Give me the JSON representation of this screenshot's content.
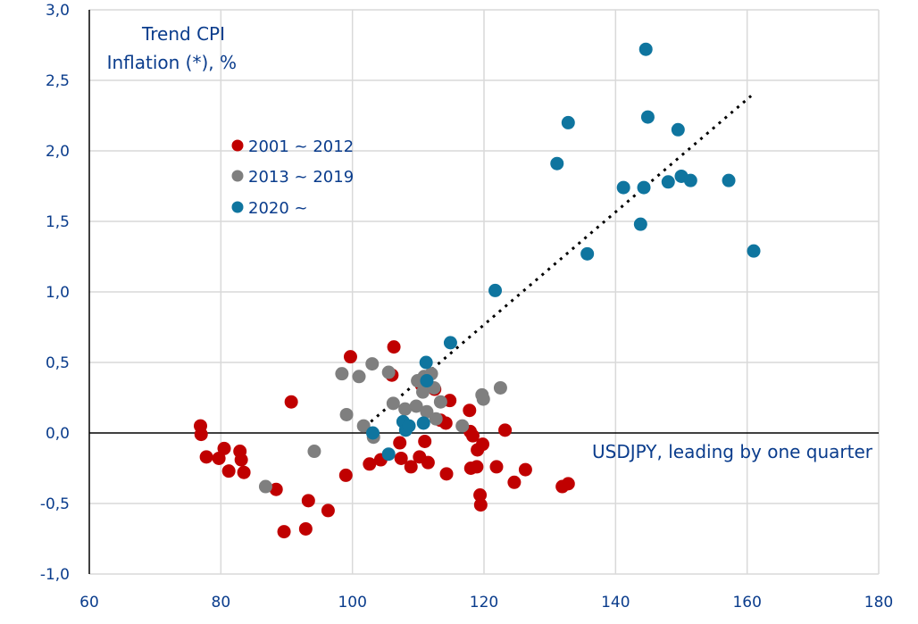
{
  "chart_data": {
    "type": "scatter",
    "title": "",
    "ylabel_lines": [
      "Trend CPI",
      "Inflation (*), %"
    ],
    "xlabel": "USDJPY, leading by one quarter",
    "xlim": [
      60,
      180
    ],
    "ylim": [
      -1.0,
      3.0
    ],
    "xticks": [
      60,
      80,
      100,
      120,
      140,
      160,
      180
    ],
    "xtick_labels": [
      "60",
      "80",
      "100",
      "120",
      "140",
      "160",
      "180"
    ],
    "yticks": [
      -1.0,
      -0.5,
      0.0,
      0.5,
      1.0,
      1.5,
      2.0,
      2.5,
      3.0
    ],
    "ytick_labels": [
      "-1,0",
      "-0,5",
      "0,0",
      "0,5",
      "1,0",
      "1,5",
      "2,0",
      "2,5",
      "3,0"
    ],
    "grid": true,
    "legend_placement": "upper-left",
    "series": [
      {
        "name": "2001 ~ 2012",
        "color": "#c00000",
        "points": [
          [
            76.9,
            0.05
          ],
          [
            77.0,
            -0.01
          ],
          [
            77.8,
            -0.17
          ],
          [
            79.7,
            -0.18
          ],
          [
            80.5,
            -0.11
          ],
          [
            81.2,
            -0.27
          ],
          [
            82.9,
            -0.13
          ],
          [
            83.1,
            -0.19
          ],
          [
            83.5,
            -0.28
          ],
          [
            88.4,
            -0.4
          ],
          [
            89.6,
            -0.7
          ],
          [
            90.7,
            0.22
          ],
          [
            92.9,
            -0.68
          ],
          [
            93.3,
            -0.48
          ],
          [
            96.3,
            -0.55
          ],
          [
            99.0,
            -0.3
          ],
          [
            99.7,
            0.54
          ],
          [
            102.6,
            -0.22
          ],
          [
            104.3,
            -0.19
          ],
          [
            106.0,
            0.41
          ],
          [
            106.3,
            0.61
          ],
          [
            107.2,
            -0.07
          ],
          [
            107.4,
            -0.18
          ],
          [
            108.9,
            -0.24
          ],
          [
            110.2,
            -0.17
          ],
          [
            110.5,
            0.34
          ],
          [
            111.0,
            -0.06
          ],
          [
            111.5,
            -0.21
          ],
          [
            112.5,
            0.31
          ],
          [
            113.4,
            0.09
          ],
          [
            114.2,
            0.07
          ],
          [
            114.3,
            -0.29
          ],
          [
            114.8,
            0.23
          ],
          [
            117.8,
            0.16
          ],
          [
            117.9,
            0.01
          ],
          [
            118.0,
            -0.25
          ],
          [
            118.3,
            -0.02
          ],
          [
            118.9,
            -0.24
          ],
          [
            119.0,
            -0.12
          ],
          [
            119.4,
            -0.44
          ],
          [
            119.5,
            -0.51
          ],
          [
            119.8,
            -0.08
          ],
          [
            121.9,
            -0.24
          ],
          [
            123.2,
            0.02
          ],
          [
            124.6,
            -0.35
          ],
          [
            126.3,
            -0.26
          ],
          [
            131.9,
            -0.38
          ],
          [
            132.8,
            -0.36
          ]
        ]
      },
      {
        "name": "2013 ~ 2019",
        "color": "#7f7f7f",
        "points": [
          [
            86.8,
            -0.38
          ],
          [
            94.2,
            -0.13
          ],
          [
            98.4,
            0.42
          ],
          [
            99.1,
            0.13
          ],
          [
            101.0,
            0.4
          ],
          [
            101.7,
            0.05
          ],
          [
            103.0,
            0.49
          ],
          [
            103.2,
            -0.03
          ],
          [
            105.5,
            0.43
          ],
          [
            106.2,
            0.21
          ],
          [
            108.0,
            0.17
          ],
          [
            109.7,
            0.19
          ],
          [
            109.9,
            0.37
          ],
          [
            110.7,
            0.29
          ],
          [
            110.9,
            0.4
          ],
          [
            111.3,
            0.15
          ],
          [
            112.0,
            0.42
          ],
          [
            112.4,
            0.32
          ],
          [
            112.7,
            0.1
          ],
          [
            113.4,
            0.22
          ],
          [
            116.7,
            0.05
          ],
          [
            119.7,
            0.27
          ],
          [
            119.9,
            0.24
          ],
          [
            122.5,
            0.32
          ]
        ]
      },
      {
        "name": "2020 ~",
        "color": "#0f759f",
        "points": [
          [
            103.1,
            0.0
          ],
          [
            105.5,
            -0.15
          ],
          [
            107.7,
            0.08
          ],
          [
            108.1,
            0.02
          ],
          [
            108.6,
            0.05
          ],
          [
            110.8,
            0.07
          ],
          [
            111.2,
            0.5
          ],
          [
            111.3,
            0.37
          ],
          [
            114.9,
            0.64
          ],
          [
            121.7,
            1.01
          ],
          [
            131.1,
            1.91
          ],
          [
            132.8,
            2.2
          ],
          [
            135.7,
            1.27
          ],
          [
            141.2,
            1.74
          ],
          [
            143.8,
            1.48
          ],
          [
            144.3,
            1.74
          ],
          [
            144.6,
            2.72
          ],
          [
            144.9,
            2.24
          ],
          [
            148.0,
            1.78
          ],
          [
            149.5,
            2.15
          ],
          [
            150.0,
            1.82
          ],
          [
            151.4,
            1.79
          ],
          [
            157.2,
            1.79
          ],
          [
            161.0,
            1.29
          ]
        ]
      }
    ],
    "trendline": {
      "style": "dotted",
      "color": "#000000",
      "from": [
        102.8,
        0.08
      ],
      "to": [
        160.6,
        2.39
      ]
    }
  }
}
